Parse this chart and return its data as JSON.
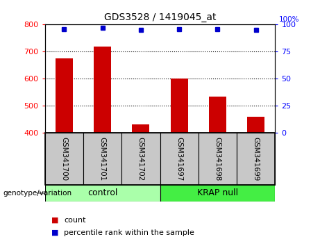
{
  "title": "GDS3528 / 1419045_at",
  "categories": [
    "GSM341700",
    "GSM341701",
    "GSM341702",
    "GSM341697",
    "GSM341698",
    "GSM341699"
  ],
  "bar_values": [
    675,
    720,
    430,
    600,
    533,
    460
  ],
  "percentile_values": [
    96,
    97,
    95,
    96,
    96,
    95
  ],
  "bar_color": "#cc0000",
  "dot_color": "#0000cc",
  "ylim_left": [
    400,
    800
  ],
  "ylim_right": [
    0,
    100
  ],
  "yticks_left": [
    400,
    500,
    600,
    700,
    800
  ],
  "yticks_right": [
    0,
    25,
    50,
    75,
    100
  ],
  "grid_values": [
    500,
    600,
    700
  ],
  "control_label": "control",
  "krap_label": "KRAP null",
  "group_label": "genotype/variation",
  "legend_count": "count",
  "legend_percentile": "percentile rank within the sample",
  "control_color": "#aaffaa",
  "krap_color": "#44ee44",
  "header_bg": "#c8c8c8",
  "bar_width": 0.45,
  "right_top_label": "100%"
}
